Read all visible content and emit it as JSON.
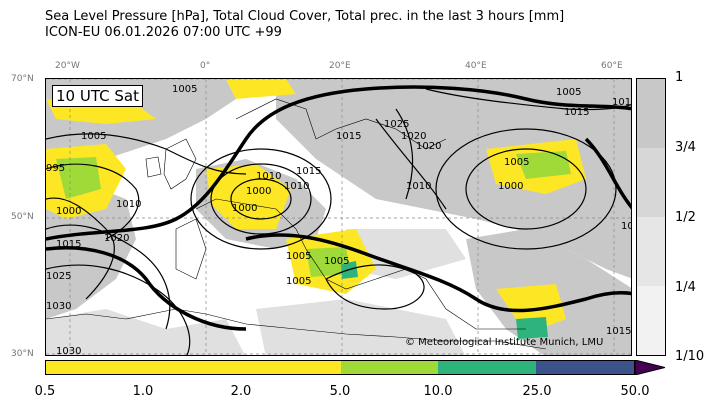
{
  "title": {
    "line1": "Sea Level Pressure [hPa], Total Cloud Cover, Total prec. in the last 3 hours [mm]",
    "line2": "ICON-EU 06.01.2026 07:00 UTC +99"
  },
  "valid_label": "10 UTC Sat",
  "copyright": "© Meteorological Institute Munich, LMU",
  "longitude_labels": [
    "20°W",
    "0°",
    "20°E",
    "40°E",
    "60°E"
  ],
  "latitude_labels": [
    "70°N",
    "50°N",
    "30°N"
  ],
  "isobar_labels": [
    "1005",
    "1005",
    "1015",
    "1010",
    "1005",
    "1000",
    "1010",
    "1005",
    "1000",
    "1005",
    "995",
    "1000",
    "1010",
    "1015",
    "1020",
    "1025",
    "1030",
    "1030",
    "1020",
    "1015",
    "1010",
    "1005",
    "1000",
    "1005",
    "1015",
    "1010",
    "1015",
    "1025",
    "1020",
    "101"
  ],
  "cloud_colorbar": {
    "labels": [
      "1",
      "3/4",
      "1/2",
      "1/4",
      "1/10"
    ],
    "colors": [
      "#c8c8c8",
      "#d7d7d7",
      "#e6e6e6",
      "#f2f2f2"
    ]
  },
  "precip_colorbar": {
    "labels": [
      "0.5",
      "1.0",
      "2.0",
      "5.0",
      "10.0",
      "25.0",
      "50.0"
    ],
    "colors": [
      "#fde725",
      "#fde725",
      "#fde725",
      "#a0da39",
      "#2eb37c",
      "#3b528b",
      "#440154"
    ]
  }
}
